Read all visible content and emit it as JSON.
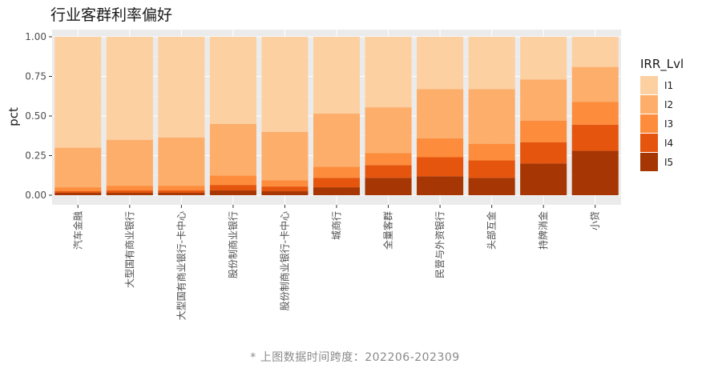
{
  "chart_data": {
    "type": "bar",
    "stacked": true,
    "title": "行业客群利率偏好",
    "xlabel": "",
    "ylabel": "pct",
    "ylim": [
      0,
      1
    ],
    "yticks": [
      "0.00",
      "0.25",
      "0.50",
      "0.75",
      "1.00"
    ],
    "grid": true,
    "legend_position": "right",
    "legend_title": "IRR_Lvl",
    "categories": [
      "汽车金融",
      "大型国有商业银行",
      "大型国有商业银行-卡中心",
      "股份制商业银行",
      "股份制商业银行-卡中心",
      "城商行",
      "全量客群",
      "民营与外资银行",
      "头部互金",
      "持牌消金",
      "小贷"
    ],
    "series": [
      {
        "name": "I1",
        "color": "#fdd0a2",
        "values": [
          0.7,
          0.65,
          0.635,
          0.55,
          0.6,
          0.485,
          0.445,
          0.33,
          0.33,
          0.27,
          0.19
        ]
      },
      {
        "name": "I2",
        "color": "#fdae6b",
        "values": [
          0.25,
          0.29,
          0.305,
          0.325,
          0.305,
          0.335,
          0.29,
          0.31,
          0.345,
          0.26,
          0.22
        ]
      },
      {
        "name": "I3",
        "color": "#fd8d3c",
        "values": [
          0.025,
          0.03,
          0.03,
          0.06,
          0.04,
          0.07,
          0.075,
          0.12,
          0.105,
          0.135,
          0.145
        ]
      },
      {
        "name": "I4",
        "color": "#e6550d",
        "values": [
          0.01,
          0.015,
          0.015,
          0.035,
          0.03,
          0.06,
          0.08,
          0.12,
          0.11,
          0.135,
          0.165
        ]
      },
      {
        "name": "I5",
        "color": "#a63603",
        "values": [
          0.015,
          0.015,
          0.015,
          0.03,
          0.025,
          0.05,
          0.11,
          0.12,
          0.11,
          0.2,
          0.28
        ]
      }
    ]
  },
  "footnote": "* 上图数据时间跨度：202206-202309"
}
